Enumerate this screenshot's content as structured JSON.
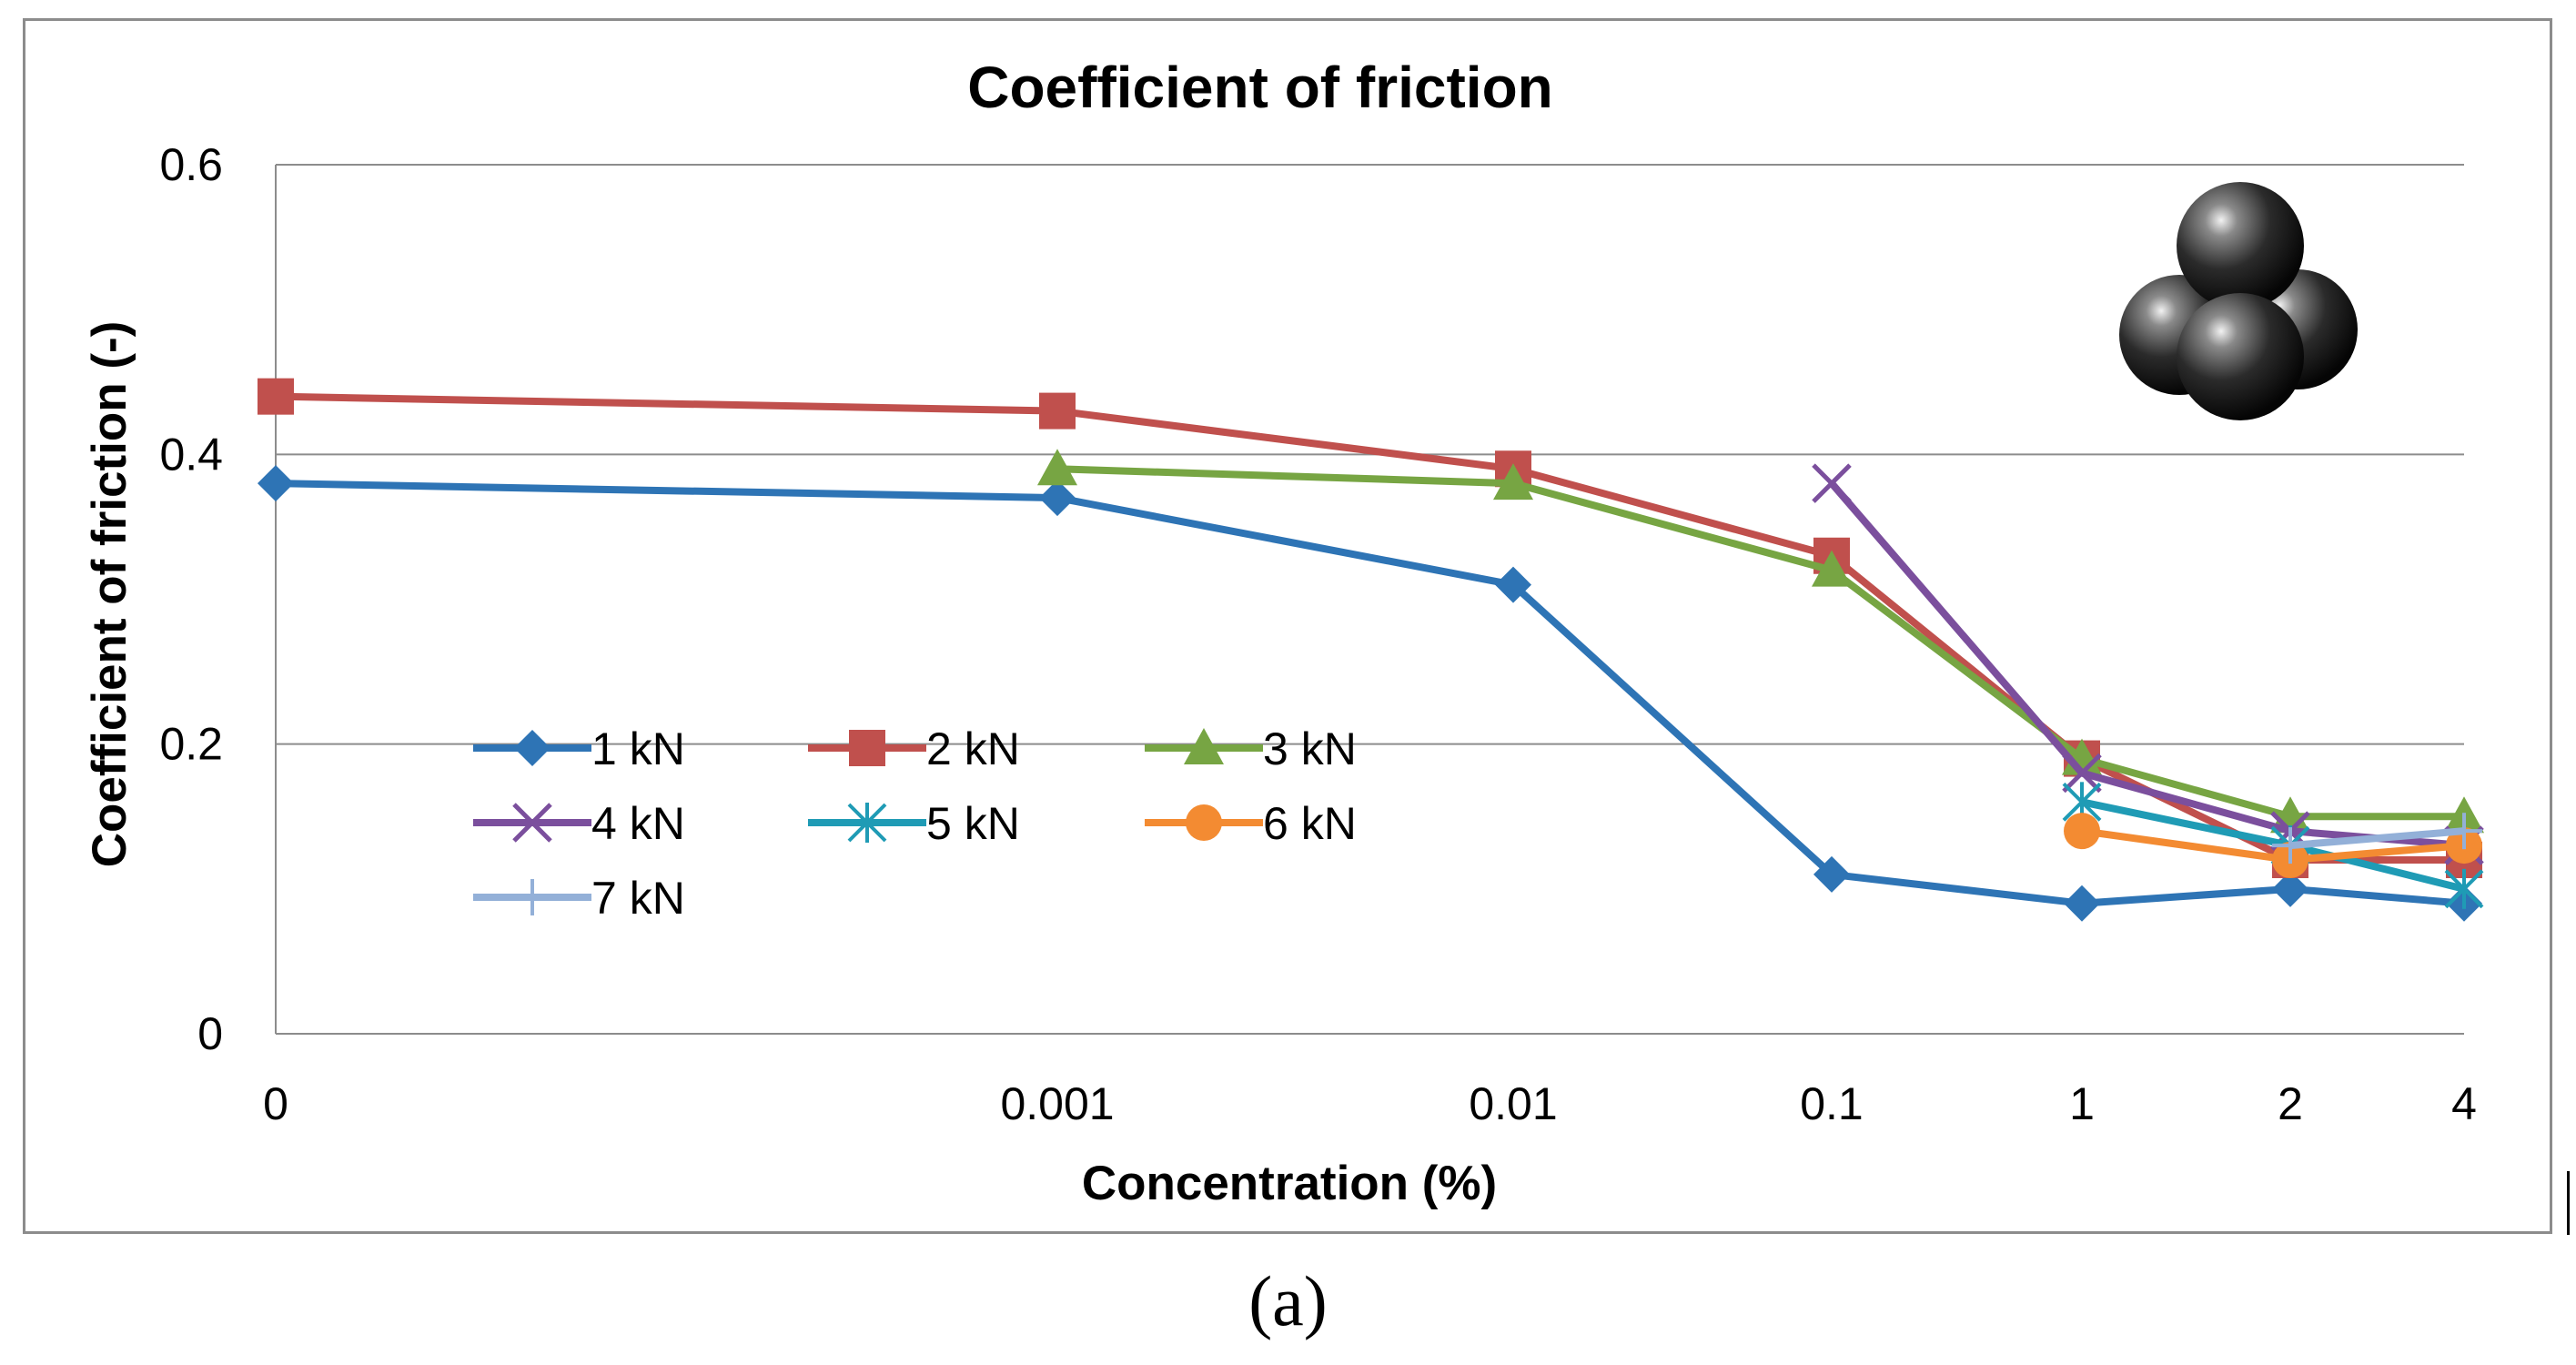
{
  "caption": "(a)",
  "chart_data": {
    "type": "line",
    "title": "Coefficient of friction",
    "xlabel": "Concentration (%)",
    "ylabel": "Coefficient of friction (-)",
    "categories": [
      "0",
      "0.001",
      "0.01",
      "0.1",
      "1",
      "2",
      "4"
    ],
    "ylim": [
      0,
      0.6
    ],
    "yticks": [
      0,
      0.2,
      0.4,
      0.6
    ],
    "ytick_labels": [
      "0",
      "0.2",
      "0.4",
      "0.6"
    ],
    "grid": true,
    "legend_position": "center-left",
    "series": [
      {
        "name": "1 kN",
        "color": "#2e74b5",
        "marker": "diamond",
        "values": [
          0.38,
          0.37,
          0.31,
          0.11,
          0.09,
          0.1,
          0.09
        ]
      },
      {
        "name": "2 kN",
        "color": "#c0504d",
        "marker": "square",
        "values": [
          0.44,
          0.43,
          0.39,
          0.33,
          0.19,
          0.12,
          0.12
        ]
      },
      {
        "name": "3 kN",
        "color": "#77a543",
        "marker": "triangle",
        "values": [
          null,
          0.39,
          0.38,
          0.32,
          0.19,
          0.15,
          0.15
        ]
      },
      {
        "name": "4 kN",
        "color": "#7b4f9d",
        "marker": "x",
        "values": [
          null,
          null,
          null,
          0.38,
          0.18,
          0.14,
          0.13
        ]
      },
      {
        "name": "5 kN",
        "color": "#1f9bb5",
        "marker": "star",
        "values": [
          null,
          null,
          null,
          null,
          0.16,
          0.13,
          0.1
        ]
      },
      {
        "name": "6 kN",
        "color": "#f38b32",
        "marker": "circle",
        "values": [
          null,
          null,
          null,
          null,
          0.14,
          0.12,
          0.13
        ]
      },
      {
        "name": "7 kN",
        "color": "#93b0d8",
        "marker": "plus",
        "values": [
          null,
          null,
          null,
          null,
          null,
          0.13,
          0.14
        ]
      }
    ]
  }
}
